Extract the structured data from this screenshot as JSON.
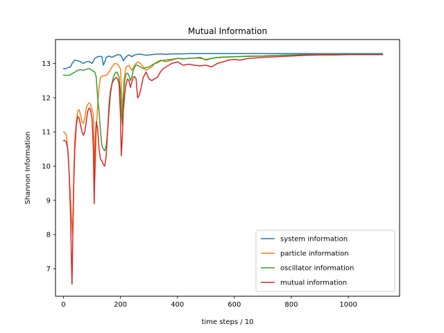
{
  "chart_data": {
    "type": "line",
    "title": "Mutual Information",
    "xlabel": "time steps / 10",
    "ylabel": "Shannon Information",
    "xlim": [
      -28,
      1180
    ],
    "ylim": [
      6.2,
      13.7
    ],
    "xticks": [
      0,
      200,
      400,
      600,
      800,
      1000
    ],
    "yticks": [
      7,
      8,
      9,
      10,
      11,
      12,
      13
    ],
    "grid": false,
    "legend": "lower-right",
    "colors": [
      "#1f77b4",
      "#ff7f0e",
      "#2ca02c",
      "#d62728"
    ],
    "series": [
      {
        "name": "system information",
        "x": [
          0,
          5,
          15,
          25,
          30,
          35,
          40,
          50,
          60,
          70,
          80,
          90,
          100,
          110,
          120,
          130,
          135,
          140,
          145,
          150,
          160,
          170,
          180,
          190,
          200,
          205,
          210,
          220,
          230,
          240,
          250,
          260,
          270,
          280,
          290,
          300,
          320,
          340,
          360,
          380,
          400,
          450,
          500,
          550,
          600,
          650,
          700,
          800,
          900,
          1000,
          1120
        ],
        "values": [
          12.85,
          12.84,
          12.88,
          12.9,
          13.0,
          13.05,
          13.1,
          13.08,
          13.05,
          13.0,
          13.05,
          13.06,
          13.0,
          13.15,
          13.2,
          13.21,
          13.2,
          12.95,
          13.05,
          13.18,
          13.22,
          13.18,
          13.22,
          13.26,
          13.25,
          13.18,
          13.08,
          13.2,
          13.25,
          13.2,
          13.25,
          13.27,
          13.27,
          13.26,
          13.24,
          13.25,
          13.27,
          13.28,
          13.27,
          13.28,
          13.28,
          13.29,
          13.29,
          13.29,
          13.29,
          13.29,
          13.29,
          13.29,
          13.29,
          13.29,
          13.29
        ]
      },
      {
        "name": "particle information",
        "x": [
          0,
          5,
          10,
          15,
          20,
          25,
          28,
          32,
          37,
          40,
          45,
          50,
          55,
          60,
          65,
          70,
          75,
          80,
          85,
          90,
          95,
          100,
          105,
          110,
          115,
          120,
          125,
          130,
          140,
          150,
          160,
          170,
          180,
          190,
          200,
          205,
          208,
          212,
          220,
          230,
          240,
          250,
          260,
          270,
          280,
          290,
          300,
          310,
          320,
          330,
          340,
          360,
          380,
          400,
          420,
          440,
          460,
          480,
          500,
          520,
          540,
          560,
          600,
          650,
          700,
          750,
          800,
          850,
          900,
          1000,
          1120
        ],
        "values": [
          11.0,
          10.98,
          10.9,
          10.5,
          9.8,
          9.0,
          8.5,
          8.0,
          10.0,
          10.8,
          11.3,
          11.6,
          11.65,
          11.5,
          11.3,
          11.25,
          11.4,
          11.7,
          11.8,
          11.85,
          11.8,
          11.65,
          11.5,
          9.6,
          11.0,
          11.8,
          12.3,
          12.6,
          12.65,
          12.65,
          12.75,
          12.9,
          13.0,
          12.98,
          12.85,
          12.0,
          11.2,
          12.5,
          12.9,
          12.95,
          12.8,
          12.95,
          13.05,
          13.0,
          12.9,
          12.8,
          12.85,
          12.9,
          13.0,
          13.05,
          13.1,
          13.05,
          13.1,
          13.15,
          13.13,
          13.15,
          13.16,
          13.15,
          13.12,
          13.15,
          13.17,
          13.18,
          13.2,
          13.22,
          13.22,
          13.24,
          13.25,
          13.26,
          13.27,
          13.27,
          13.27
        ]
      },
      {
        "name": "oscillator information",
        "x": [
          0,
          5,
          10,
          15,
          20,
          30,
          40,
          50,
          60,
          70,
          80,
          90,
          100,
          110,
          115,
          120,
          125,
          130,
          135,
          140,
          145,
          150,
          155,
          160,
          165,
          170,
          175,
          180,
          185,
          190,
          195,
          200,
          203,
          207,
          210,
          215,
          220,
          225,
          230,
          235,
          240,
          245,
          250,
          255,
          260,
          270,
          280,
          290,
          300,
          310,
          320,
          330,
          340,
          360,
          380,
          400,
          420,
          440,
          460,
          480,
          500,
          520,
          540,
          560,
          600,
          650,
          700,
          750,
          800,
          850,
          900,
          1000,
          1120
        ],
        "values": [
          12.66,
          12.66,
          12.65,
          12.66,
          12.65,
          12.7,
          12.75,
          12.8,
          12.82,
          12.8,
          12.83,
          12.85,
          12.8,
          12.75,
          12.6,
          12.0,
          11.6,
          11.0,
          10.6,
          10.5,
          10.45,
          10.6,
          11.0,
          11.6,
          12.1,
          12.4,
          12.6,
          12.7,
          12.75,
          12.72,
          12.6,
          12.2,
          11.6,
          11.2,
          12.0,
          12.5,
          12.7,
          12.72,
          12.65,
          12.5,
          12.6,
          12.8,
          12.9,
          12.95,
          12.95,
          12.9,
          12.85,
          12.88,
          12.9,
          12.95,
          13.0,
          13.02,
          13.08,
          13.1,
          13.12,
          13.15,
          13.14,
          13.15,
          13.16,
          13.18,
          13.1,
          13.15,
          13.18,
          13.19,
          13.2,
          13.21,
          13.22,
          13.24,
          13.25,
          13.26,
          13.26,
          13.27,
          13.27
        ]
      },
      {
        "name": "mutual information",
        "x": [
          0,
          5,
          10,
          15,
          20,
          25,
          28,
          30,
          33,
          36,
          40,
          45,
          50,
          55,
          60,
          65,
          70,
          75,
          80,
          85,
          90,
          95,
          100,
          105,
          108,
          112,
          115,
          120,
          125,
          130,
          135,
          140,
          145,
          150,
          155,
          160,
          165,
          170,
          175,
          180,
          185,
          190,
          195,
          200,
          203,
          207,
          210,
          215,
          220,
          225,
          230,
          235,
          240,
          245,
          250,
          255,
          260,
          265,
          270,
          280,
          290,
          300,
          310,
          320,
          330,
          340,
          350,
          360,
          380,
          400,
          420,
          440,
          460,
          480,
          500,
          520,
          540,
          560,
          580,
          600,
          620,
          650,
          700,
          750,
          800,
          850,
          900,
          950,
          1000,
          1120
        ],
        "values": [
          10.75,
          10.75,
          10.7,
          10.5,
          9.8,
          8.5,
          7.2,
          6.55,
          8.0,
          9.5,
          10.5,
          11.2,
          11.45,
          11.4,
          11.2,
          11.0,
          10.9,
          11.0,
          11.3,
          11.6,
          11.7,
          11.65,
          11.4,
          10.5,
          8.9,
          10.8,
          11.3,
          11.1,
          10.5,
          10.2,
          10.15,
          10.05,
          10.0,
          10.3,
          11.0,
          11.8,
          12.2,
          12.4,
          12.5,
          12.55,
          12.6,
          12.55,
          12.4,
          11.5,
          10.3,
          10.9,
          11.6,
          12.1,
          12.4,
          12.55,
          12.5,
          12.3,
          12.45,
          12.6,
          12.62,
          12.55,
          12.0,
          12.05,
          12.2,
          12.6,
          12.75,
          12.55,
          12.5,
          12.55,
          12.6,
          12.75,
          12.85,
          12.9,
          13.0,
          13.05,
          12.95,
          12.98,
          12.95,
          12.93,
          12.95,
          12.9,
          13.0,
          13.05,
          13.1,
          13.12,
          13.1,
          13.15,
          13.18,
          13.2,
          13.22,
          13.24,
          13.25,
          13.25,
          13.26,
          13.26
        ]
      }
    ]
  }
}
